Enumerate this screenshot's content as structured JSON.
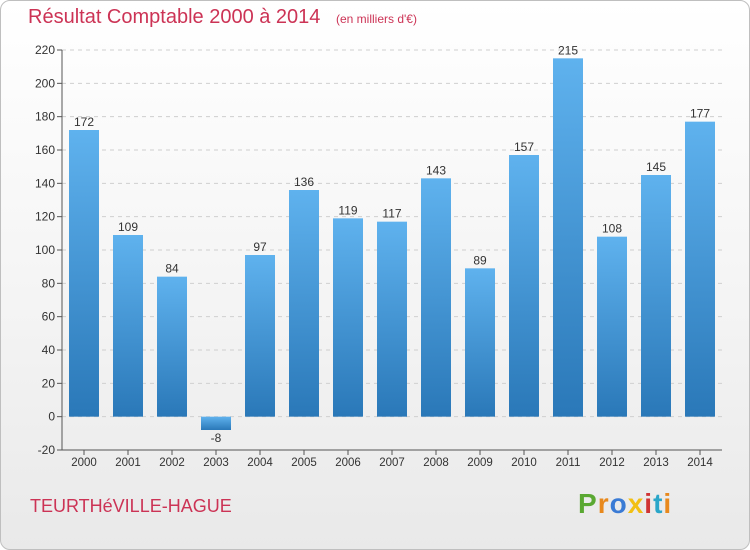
{
  "title": "Résultat Comptable 2000 à 2014",
  "unit": "(en milliers d'€)",
  "town": "TEURTHéVILLE-HAGUE",
  "brand": "Proxiti",
  "brand_colors": [
    "#5aa832",
    "#e8891d",
    "#3a7bd5",
    "#f2c014",
    "#d03434",
    "#2aa6c9",
    "#e8891d"
  ],
  "chart_data": {
    "type": "bar",
    "categories": [
      "2000",
      "2001",
      "2002",
      "2003",
      "2004",
      "2005",
      "2006",
      "2007",
      "2008",
      "2009",
      "2010",
      "2011",
      "2012",
      "2013",
      "2014"
    ],
    "values": [
      172,
      109,
      84,
      -8,
      97,
      136,
      119,
      117,
      143,
      89,
      157,
      215,
      108,
      145,
      177
    ],
    "ylim": [
      -20,
      220
    ],
    "yticks": [
      -20,
      0,
      20,
      40,
      60,
      80,
      100,
      120,
      140,
      160,
      180,
      200,
      220
    ],
    "grid": true,
    "bar_color": "#3a8fd4"
  }
}
